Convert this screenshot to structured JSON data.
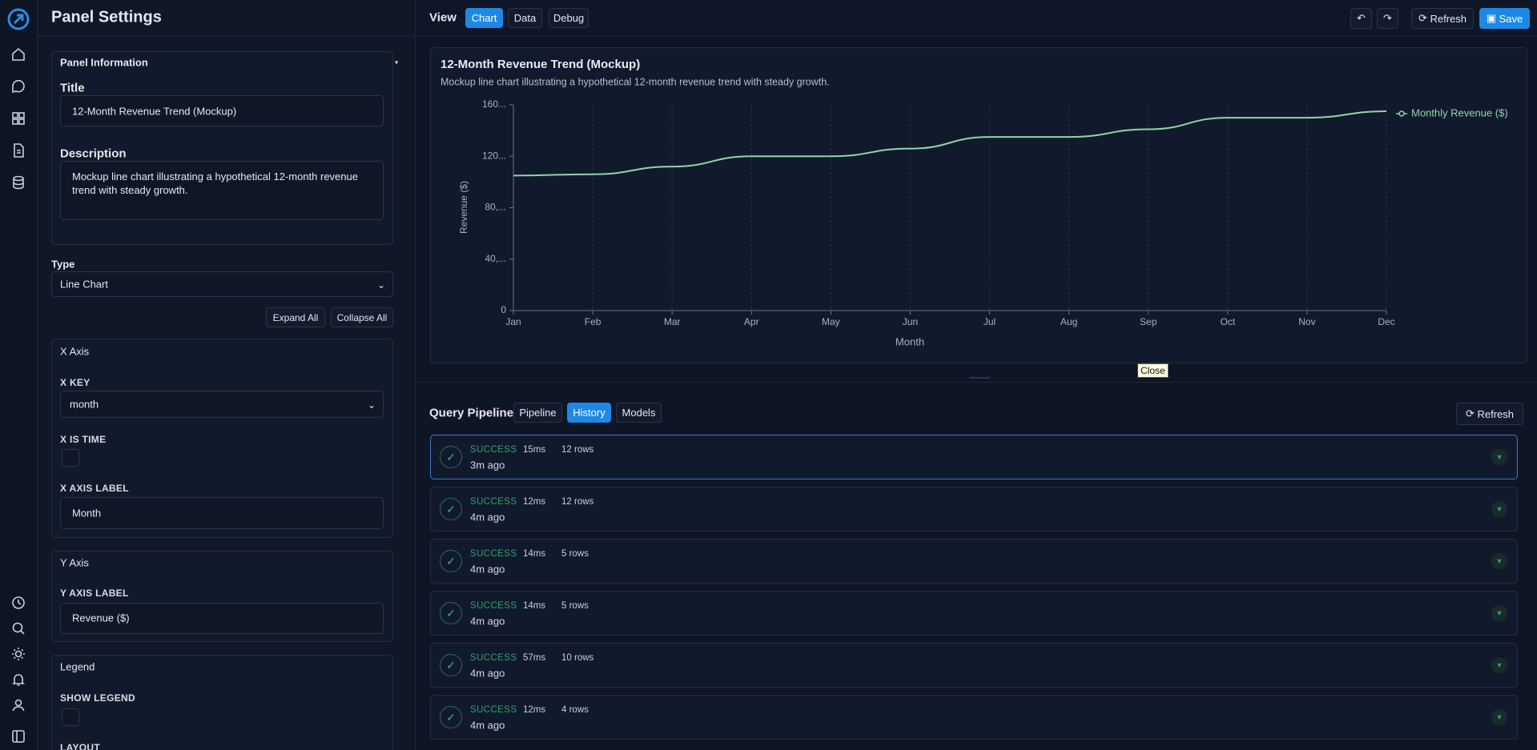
{
  "app": {
    "panel_title": "Panel Settings"
  },
  "settings": {
    "section": "Panel Information",
    "title_label": "Title",
    "title_value": "12-Month Revenue Trend (Mockup)",
    "description_label": "Description",
    "description_value": "Mockup line chart illustrating a hypothetical 12-month revenue trend with steady growth.",
    "type_label": "Type",
    "type_value": "Line Chart",
    "expand_all": "Expand All",
    "collapse_all": "Collapse All",
    "x_axis": {
      "heading": "X Axis",
      "x_key_label": "X KEY",
      "x_key_value": "month",
      "x_is_time_label": "X IS TIME",
      "x_axis_label_label": "X AXIS LABEL",
      "x_axis_label_value": "Month"
    },
    "y_axis": {
      "heading": "Y Axis",
      "label": "Y AXIS LABEL",
      "value": "Revenue ($)"
    },
    "legend": {
      "heading": "Legend",
      "show_legend_label": "SHOW LEGEND",
      "layout_label": "LAYOUT"
    }
  },
  "toolbar": {
    "view_label": "View",
    "tabs": [
      "Chart",
      "Data",
      "Debug"
    ],
    "active": 0,
    "refresh": "Refresh",
    "save": "Save"
  },
  "chart_data": {
    "type": "line",
    "title": "12-Month Revenue Trend (Mockup)",
    "subtitle": "Mockup line chart illustrating a hypothetical 12-month revenue trend with steady growth.",
    "x_label": "Month",
    "y_label": "Revenue ($)",
    "categories": [
      "Jan",
      "Feb",
      "Mar",
      "Apr",
      "May",
      "Jun",
      "Jul",
      "Aug",
      "Sep",
      "Oct",
      "Nov",
      "Dec"
    ],
    "series": [
      {
        "name": "Monthly Revenue ($)",
        "color": "#8fd6a4",
        "values": [
          105000,
          106000,
          112000,
          120000,
          120000,
          126000,
          135000,
          135000,
          141000,
          150000,
          150000,
          155000
        ]
      }
    ],
    "ylim": [
      0,
      160000
    ],
    "yticks": [
      0,
      {
        "value": 40000,
        "label": "40,..."
      },
      {
        "value": 80000,
        "label": "80,..."
      },
      {
        "value": 120000,
        "label": "120..."
      },
      {
        "value": 160000,
        "label": "160..."
      }
    ],
    "grid": "x",
    "legend_position": "top-right"
  },
  "tooltip": "Close",
  "pipeline": {
    "title": "Query Pipeline",
    "tabs": [
      "Pipeline",
      "History",
      "Models"
    ],
    "active": 1,
    "refresh": "Refresh",
    "runs": [
      {
        "status": "SUCCESS",
        "duration": "15ms",
        "rows": "12 rows",
        "time": "3m ago"
      },
      {
        "status": "SUCCESS",
        "duration": "12ms",
        "rows": "12 rows",
        "time": "4m ago"
      },
      {
        "status": "SUCCESS",
        "duration": "14ms",
        "rows": "5 rows",
        "time": "4m ago"
      },
      {
        "status": "SUCCESS",
        "duration": "14ms",
        "rows": "5 rows",
        "time": "4m ago"
      },
      {
        "status": "SUCCESS",
        "duration": "57ms",
        "rows": "10 rows",
        "time": "4m ago"
      },
      {
        "status": "SUCCESS",
        "duration": "12ms",
        "rows": "4 rows",
        "time": "4m ago"
      }
    ]
  }
}
